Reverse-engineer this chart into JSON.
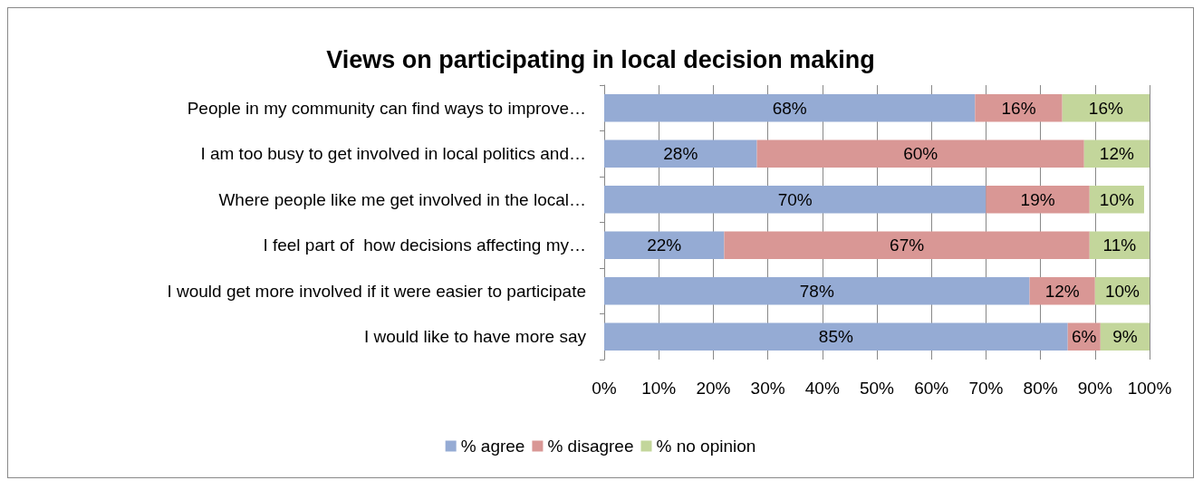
{
  "chart_data": {
    "type": "bar",
    "title": "Views on participating in local decision making",
    "orientation": "horizontal",
    "stacked": true,
    "categories": [
      "People in my community can find ways to improve…",
      "I am too busy to get involved in local politics and…",
      "Where people like me get involved in the local…",
      "I feel part of  how decisions affecting my…",
      "I would get more involved if it were easier to participate",
      "I would like to have more say"
    ],
    "series": [
      {
        "name": "% agree",
        "color": "#95abd4",
        "values": [
          68,
          28,
          70,
          22,
          78,
          85
        ],
        "value_labels": [
          "68%",
          "28%",
          "70%",
          "22%",
          "78%",
          "85%"
        ]
      },
      {
        "name": "% disagree",
        "color": "#d99795",
        "values": [
          16,
          60,
          19,
          67,
          12,
          6
        ],
        "value_labels": [
          "16%",
          "60%",
          "19%",
          "67%",
          "12%",
          "6%"
        ]
      },
      {
        "name": "% no opinion",
        "color": "#c3d69b",
        "values": [
          16,
          12,
          10,
          11,
          10,
          9
        ],
        "value_labels": [
          "16%",
          "12%",
          "10%",
          "11%",
          "10%",
          "9%"
        ]
      }
    ],
    "xlim": [
      0,
      100
    ],
    "xticks": [
      {
        "value": 0,
        "label": "0%"
      },
      {
        "value": 10,
        "label": "10%"
      },
      {
        "value": 20,
        "label": "20%"
      },
      {
        "value": 30,
        "label": "30%"
      },
      {
        "value": 40,
        "label": "40%"
      },
      {
        "value": 50,
        "label": "50%"
      },
      {
        "value": 60,
        "label": "60%"
      },
      {
        "value": 70,
        "label": "70%"
      },
      {
        "value": 80,
        "label": "80%"
      },
      {
        "value": 90,
        "label": "90%"
      },
      {
        "value": 100,
        "label": "100%"
      }
    ],
    "grid": "x",
    "legend": "bottom"
  }
}
